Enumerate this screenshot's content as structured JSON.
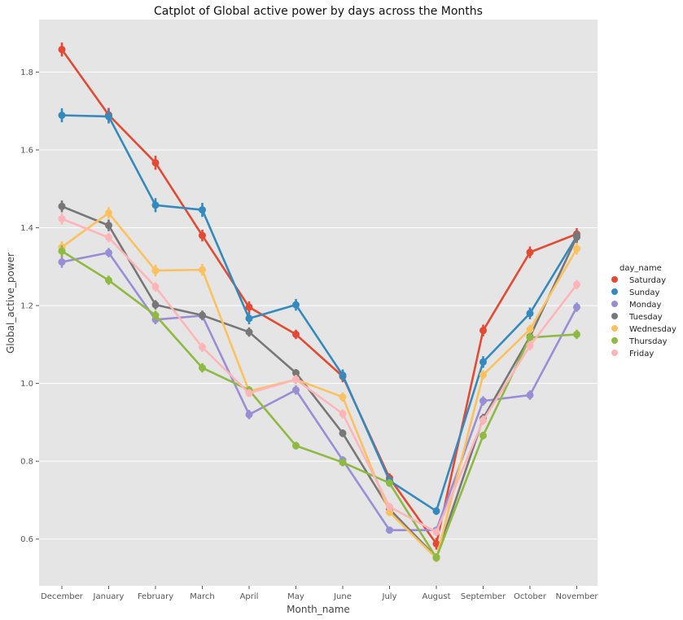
{
  "chart_data": {
    "type": "line",
    "title": "Catplot of Global active power by days across the Months",
    "xlabel": "Month_name",
    "ylabel": "Global_active_power",
    "ylim": [
      0.48,
      1.935
    ],
    "yticks": [
      0.6,
      0.8,
      1.0,
      1.2,
      1.4,
      1.6,
      1.8
    ],
    "grid": true,
    "legend_title": "day_name",
    "legend_position": "right",
    "categories": [
      "December",
      "January",
      "February",
      "March",
      "April",
      "May",
      "June",
      "July",
      "August",
      "September",
      "October",
      "November"
    ],
    "series": [
      {
        "name": "Saturday",
        "color": "#E24A33",
        "values": [
          1.858,
          1.69,
          1.567,
          1.38,
          1.196,
          1.126,
          1.018,
          0.757,
          0.588,
          1.136,
          1.337,
          1.384
        ],
        "err": [
          0.018,
          0.018,
          0.018,
          0.015,
          0.015,
          0.012,
          0.015,
          0.012,
          0.015,
          0.015,
          0.015,
          0.015
        ]
      },
      {
        "name": "Sunday",
        "color": "#348ABD",
        "values": [
          1.689,
          1.686,
          1.458,
          1.446,
          1.167,
          1.202,
          1.021,
          0.75,
          0.672,
          1.055,
          1.18,
          1.378
        ],
        "err": [
          0.018,
          0.018,
          0.018,
          0.018,
          0.015,
          0.015,
          0.015,
          0.012,
          0.01,
          0.015,
          0.015,
          0.015
        ]
      },
      {
        "name": "Monday",
        "color": "#988ED5",
        "values": [
          1.312,
          1.336,
          1.164,
          1.174,
          0.92,
          0.983,
          0.803,
          0.623,
          0.623,
          0.955,
          0.97,
          1.196
        ],
        "err": [
          0.015,
          0.012,
          0.012,
          0.012,
          0.012,
          0.012,
          0.01,
          0.008,
          0.008,
          0.012,
          0.012,
          0.012
        ]
      },
      {
        "name": "Tuesday",
        "color": "#777777",
        "values": [
          1.455,
          1.406,
          1.202,
          1.175,
          1.132,
          1.027,
          0.872,
          0.677,
          0.553,
          0.91,
          1.12,
          1.376
        ],
        "err": [
          0.015,
          0.015,
          0.012,
          0.012,
          0.012,
          0.01,
          0.01,
          0.01,
          0.01,
          0.012,
          0.012,
          0.015
        ]
      },
      {
        "name": "Wednesday",
        "color": "#FBC15E",
        "values": [
          1.35,
          1.438,
          1.29,
          1.292,
          0.98,
          1.01,
          0.965,
          0.669,
          0.551,
          1.022,
          1.139,
          1.346
        ],
        "err": [
          0.015,
          0.015,
          0.015,
          0.015,
          0.012,
          0.012,
          0.012,
          0.01,
          0.01,
          0.012,
          0.012,
          0.015
        ]
      },
      {
        "name": "Thursday",
        "color": "#8EBA42",
        "values": [
          1.34,
          1.265,
          1.175,
          1.04,
          0.983,
          0.84,
          0.797,
          0.744,
          0.552,
          0.866,
          1.118,
          1.126
        ],
        "err": [
          0.015,
          0.012,
          0.012,
          0.012,
          0.01,
          0.01,
          0.01,
          0.01,
          0.01,
          0.01,
          0.012,
          0.012
        ]
      },
      {
        "name": "Friday",
        "color": "#FFB5B8",
        "values": [
          1.423,
          1.375,
          1.248,
          1.093,
          0.975,
          1.01,
          0.922,
          0.683,
          0.618,
          0.905,
          1.097,
          1.254
        ],
        "err": [
          0.015,
          0.012,
          0.012,
          0.012,
          0.01,
          0.01,
          0.012,
          0.01,
          0.01,
          0.012,
          0.012,
          0.012
        ]
      }
    ]
  }
}
